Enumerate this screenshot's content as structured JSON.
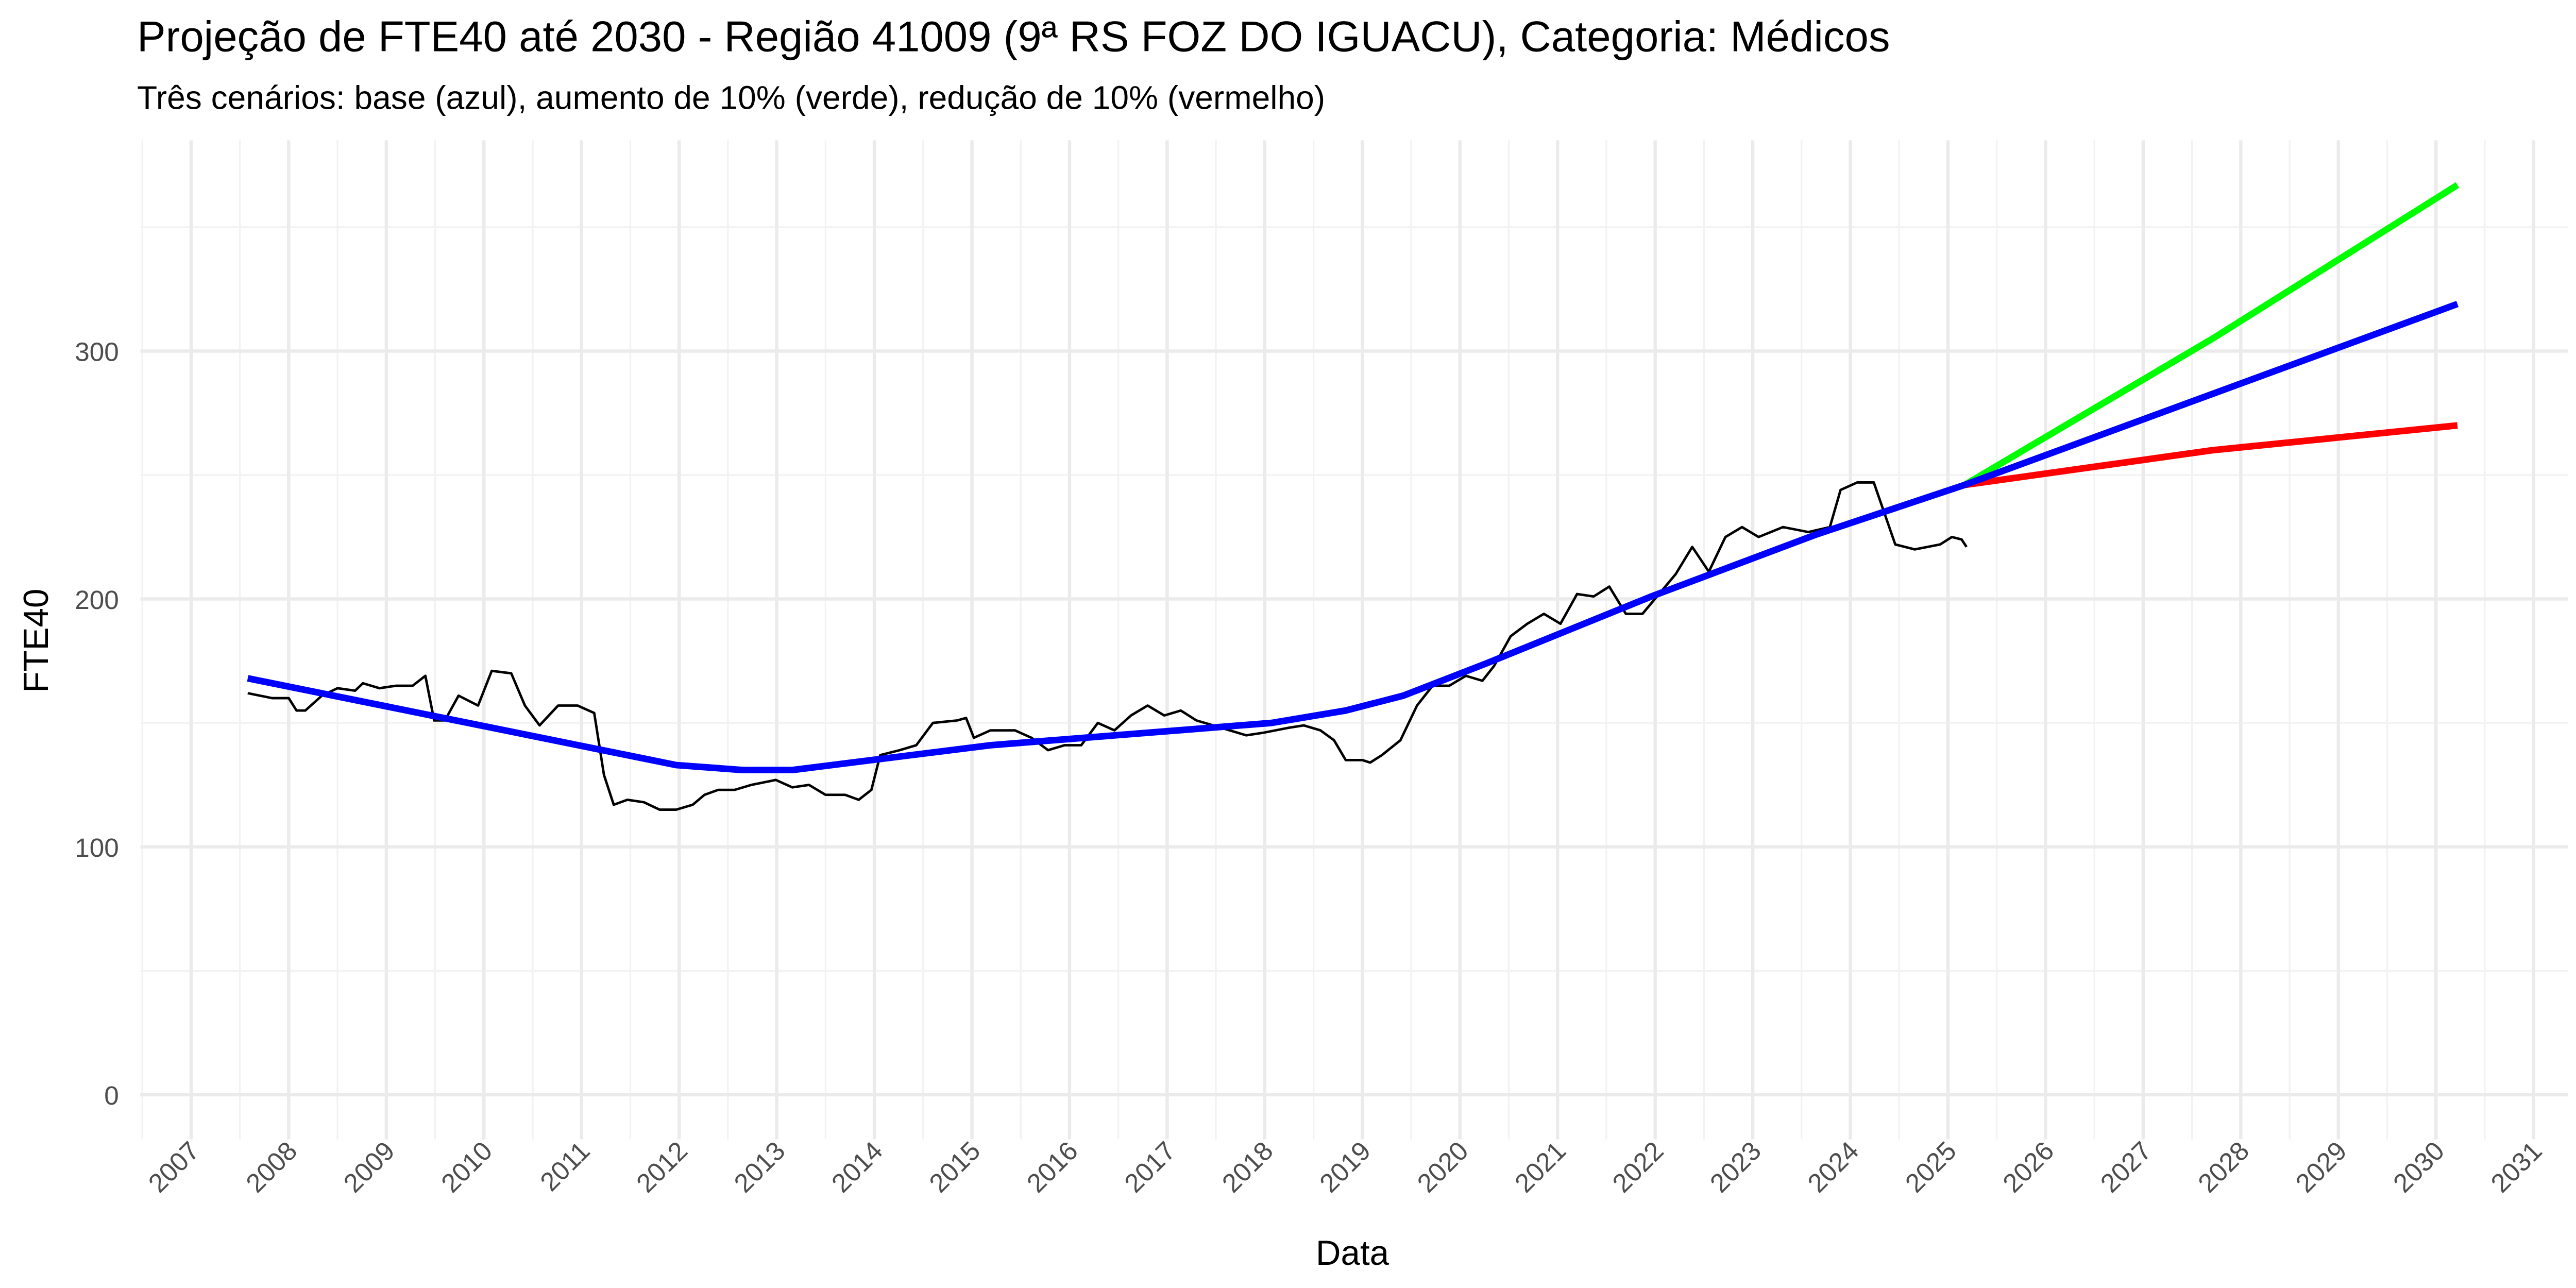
{
  "chart_data": {
    "type": "line",
    "title": "Projeção de FTE40 até 2030 - Região 41009 (9ª RS FOZ DO IGUACU), Categoria: Médicos",
    "subtitle": "Três cenários: base (azul), aumento de 10% (verde), redução de 10% (vermelho)",
    "x_label": "Data",
    "y_label": "FTE40",
    "xlim": [
      2006.48,
      2031.35
    ],
    "xticks": [
      2007,
      2008,
      2009,
      2010,
      2011,
      2012,
      2013,
      2014,
      2015,
      2016,
      2017,
      2018,
      2019,
      2020,
      2021,
      2022,
      2023,
      2024,
      2025,
      2026,
      2027,
      2028,
      2029,
      2030,
      2031
    ],
    "ylim": [
      -18,
      385
    ],
    "yticks": [
      0,
      100,
      200,
      300
    ],
    "grid": true,
    "series": [
      {
        "color": "#000000",
        "linewidth": 1.5,
        "x": [
          2007.58,
          2007.83,
          2008.0,
          2008.08,
          2008.17,
          2008.34,
          2008.5,
          2008.68,
          2008.76,
          2008.93,
          2009.1,
          2009.27,
          2009.4,
          2009.49,
          2009.6,
          2009.74,
          2009.94,
          2010.08,
          2010.28,
          2010.42,
          2010.57,
          2010.76,
          2010.96,
          2011.13,
          2011.23,
          2011.33,
          2011.47,
          2011.64,
          2011.8,
          2011.97,
          2012.14,
          2012.26,
          2012.4,
          2012.57,
          2012.74,
          2012.99,
          2013.16,
          2013.33,
          2013.5,
          2013.7,
          2013.84,
          2013.97,
          2014.06,
          2014.26,
          2014.43,
          2014.6,
          2014.85,
          2014.94,
          2015.02,
          2015.19,
          2015.44,
          2015.61,
          2015.78,
          2015.95,
          2016.12,
          2016.29,
          2016.46,
          2016.63,
          2016.8,
          2016.97,
          2017.14,
          2017.3,
          2017.47,
          2017.64,
          2017.81,
          2017.98,
          2018.24,
          2018.4,
          2018.57,
          2018.71,
          2018.83,
          2019.0,
          2019.08,
          2019.2,
          2019.39,
          2019.56,
          2019.72,
          2019.89,
          2020.06,
          2020.23,
          2020.35,
          2020.52,
          2020.69,
          2020.86,
          2021.03,
          2021.2,
          2021.37,
          2021.53,
          2021.7,
          2021.87,
          2022.04,
          2022.21,
          2022.38,
          2022.55,
          2022.72,
          2022.89,
          2023.06,
          2023.31,
          2023.57,
          2023.79,
          2023.9,
          2024.07,
          2024.24,
          2024.46,
          2024.66,
          2024.92,
          2025.04,
          2025.14,
          2025.19
        ],
        "values": [
          162,
          160,
          160,
          155,
          155,
          161,
          164,
          163,
          166,
          164,
          165,
          165,
          169,
          151,
          151,
          161,
          157,
          171,
          170,
          157,
          149,
          157,
          157,
          154,
          129,
          117,
          119,
          118,
          115,
          115,
          117,
          121,
          123,
          123,
          125,
          127,
          124,
          125,
          121,
          121,
          119,
          123,
          137,
          139,
          141,
          150,
          151,
          152,
          144,
          147,
          147,
          144,
          139,
          141,
          141,
          150,
          147,
          153,
          157,
          153,
          155,
          151,
          149,
          147,
          145,
          146,
          148,
          149,
          147,
          143,
          135,
          135,
          134,
          137,
          143,
          157,
          165,
          165,
          169,
          167,
          173,
          185,
          190,
          194,
          190,
          202,
          201,
          205,
          194,
          194,
          202,
          210,
          221,
          211,
          225,
          229,
          225,
          229,
          227,
          229,
          244,
          247,
          247,
          222,
          220,
          222,
          225,
          224,
          221
        ]
      },
      {
        "color": "#00ff00",
        "linewidth": 4,
        "x": [
          2025.17,
          2027.71,
          2030.22
        ],
        "values": [
          246,
          305,
          367
        ]
      },
      {
        "color": "#ff0000",
        "linewidth": 4,
        "x": [
          2025.17,
          2027.71,
          2030.22
        ],
        "values": [
          246,
          260,
          270
        ]
      },
      {
        "color": "#0000ff",
        "linewidth": 4,
        "x": [
          2007.58,
          2011.97,
          2012.65,
          2013.16,
          2015.19,
          2018.07,
          2018.83,
          2019.42,
          2020.27,
          2021.96,
          2023.65,
          2025.17,
          2030.22
        ],
        "values": [
          168,
          133,
          131,
          131,
          141,
          150,
          155,
          161,
          174,
          201,
          226,
          246,
          319
        ]
      }
    ]
  }
}
